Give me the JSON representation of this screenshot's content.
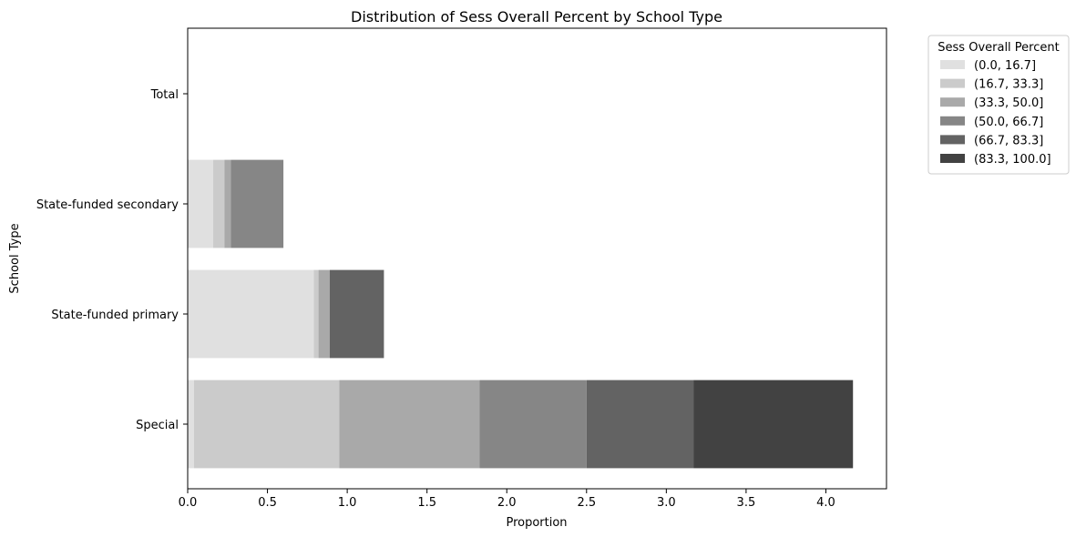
{
  "chart_data": {
    "type": "bar",
    "orientation": "horizontal",
    "stacked": true,
    "title": "Distribution of Sess Overall Percent by School Type",
    "xlabel": "Proportion",
    "ylabel": "School Type",
    "xlim": [
      0,
      4.38
    ],
    "xticks": [
      "0.0",
      "0.5",
      "1.0",
      "1.5",
      "2.0",
      "2.5",
      "3.0",
      "3.5",
      "4.0"
    ],
    "categories": [
      "Special",
      "State-funded primary",
      "State-funded secondary",
      "Total"
    ],
    "legend": {
      "title": "Sess Overall Percent",
      "placement": "outside upper-right"
    },
    "series": [
      {
        "name": "(0.0, 16.7]",
        "color": "#e0e0e0",
        "values": [
          0.04,
          0.79,
          0.16,
          0
        ]
      },
      {
        "name": "(16.7, 33.3]",
        "color": "#cbcbcb",
        "values": [
          0.91,
          0.03,
          0.07,
          0
        ]
      },
      {
        "name": "(33.3, 50.0]",
        "color": "#a9a9a9",
        "values": [
          0.88,
          0.07,
          0.04,
          0
        ]
      },
      {
        "name": "(50.0, 66.7]",
        "color": "#868686",
        "values": [
          0.67,
          0,
          0.33,
          0
        ]
      },
      {
        "name": "(66.7, 83.3]",
        "color": "#636363",
        "values": [
          0.67,
          0.34,
          0,
          0
        ]
      },
      {
        "name": "(83.3, 100.0]",
        "color": "#424242",
        "values": [
          1.0,
          0,
          0,
          0
        ]
      }
    ]
  }
}
